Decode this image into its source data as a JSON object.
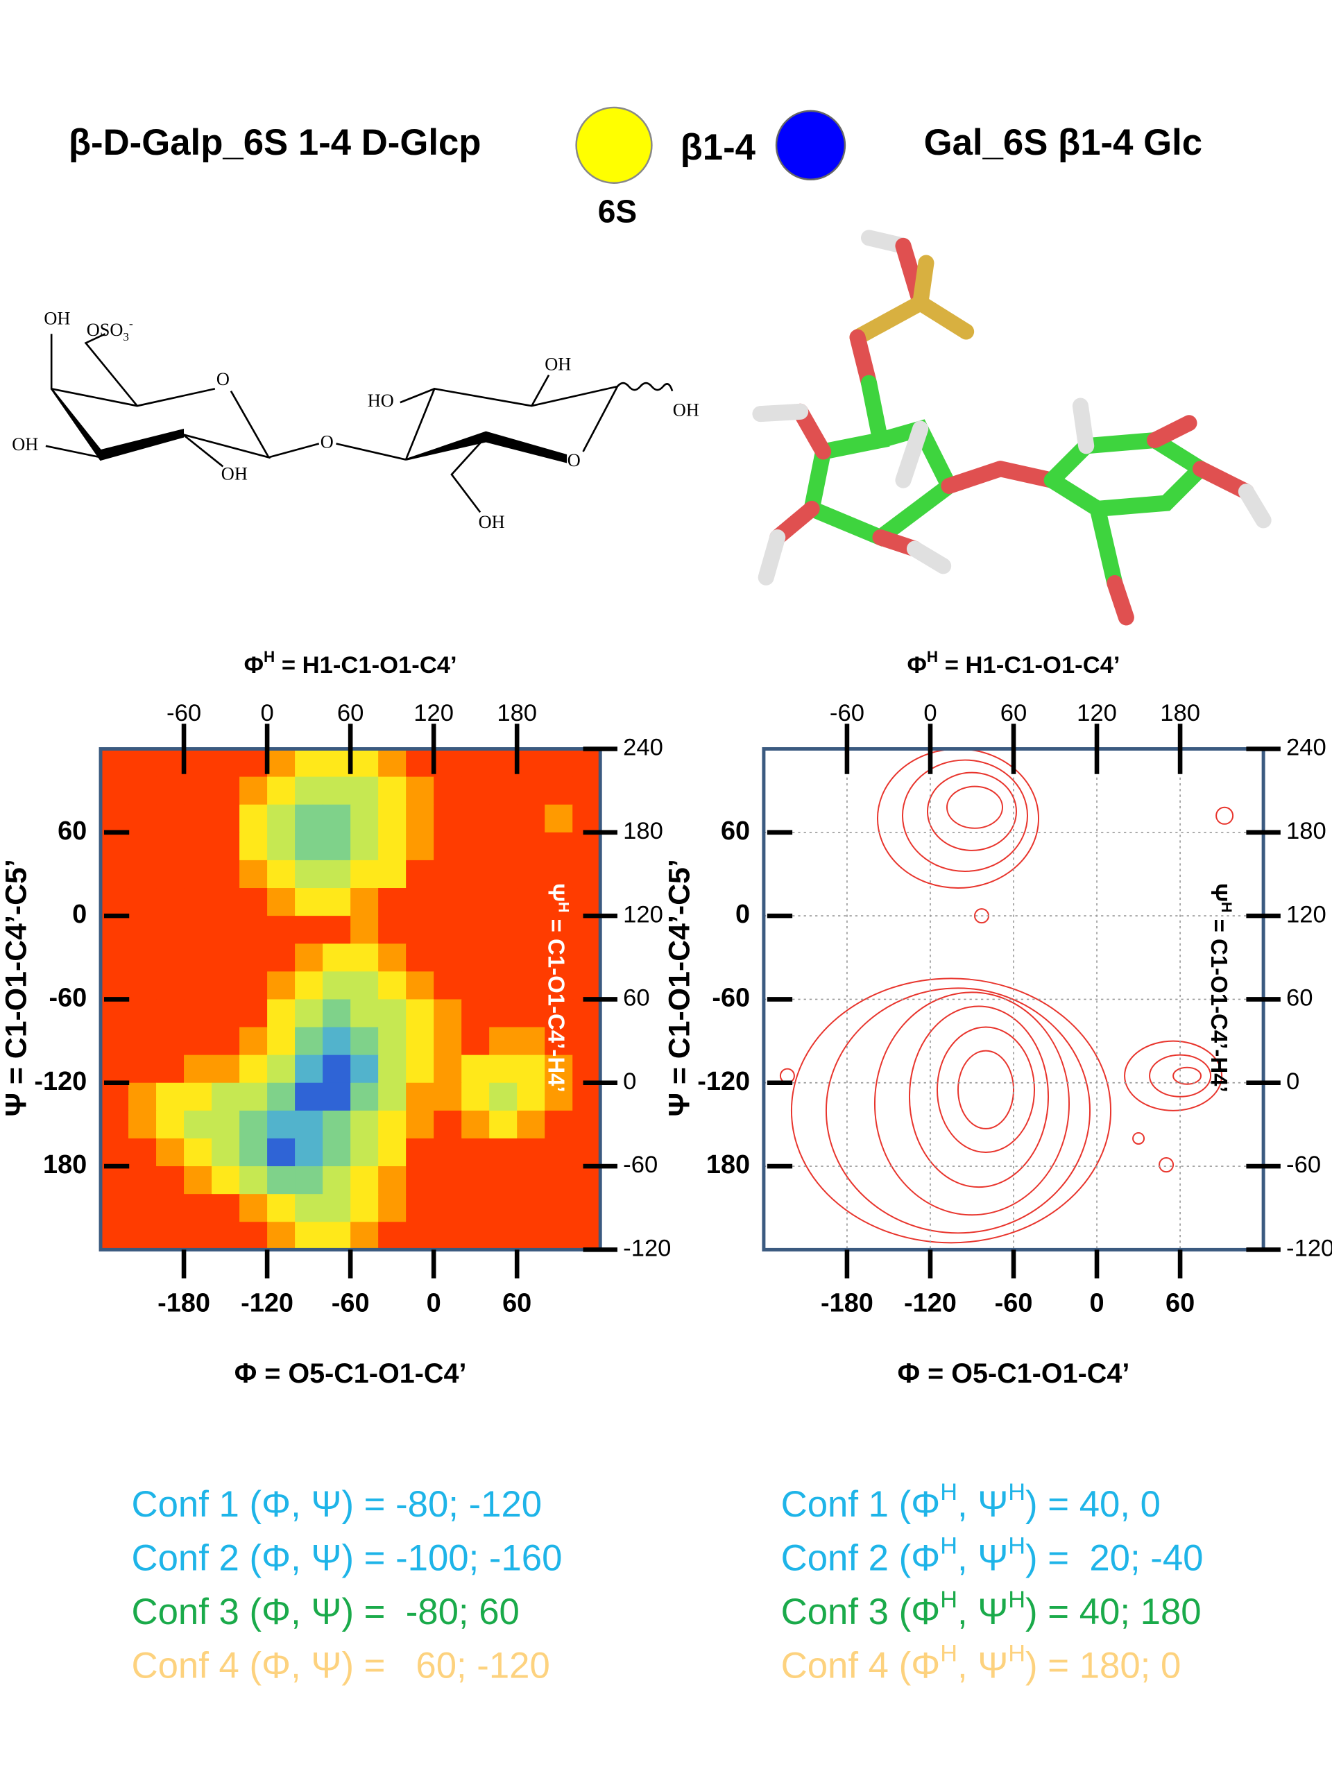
{
  "header": {
    "title_left": "β-D-Galp_6S 1-4 D-Glcp",
    "linkage": "β1-4",
    "sulfate": "6S",
    "title_right": "Gal_6S β1-4 Glc"
  },
  "structure": {
    "labels": [
      {
        "text": [
          "OH"
        ]
      },
      {
        "text": [
          "OSO",
          "3",
          "-"
        ]
      },
      {
        "text": [
          "O"
        ]
      },
      {
        "text": [
          "OH"
        ]
      },
      {
        "text": [
          "OH"
        ]
      },
      {
        "text": [
          "O"
        ]
      },
      {
        "text": [
          "HO"
        ]
      },
      {
        "text": [
          "OH"
        ]
      },
      {
        "text": [
          "OH"
        ]
      },
      {
        "text": [
          "O"
        ]
      },
      {
        "text": [
          "OH"
        ]
      }
    ]
  },
  "chart_data": [
    {
      "type": "heatmap",
      "xlabel": "Φ = O5-C1-O1-C4’",
      "x2label": [
        "Φ",
        "H",
        " = H1-C1-O1-C4’"
      ],
      "ylabel": "Ψ = C1-O1-C4’-C5’",
      "y2label": [
        "Ψ",
        "H",
        " = C1-O1-C4’-H4’"
      ],
      "y2label_color": "#ffffff",
      "xlim": [
        -240,
        120
      ],
      "xticks": [
        -180,
        -120,
        -60,
        0,
        60
      ],
      "x2lim": [
        -120,
        240
      ],
      "x2ticks": [
        -60,
        0,
        60,
        120,
        180
      ],
      "ylim": [
        -240,
        120
      ],
      "yticks": [
        60,
        0,
        -60,
        -120,
        {
          "value": -180,
          "label": "180"
        }
      ],
      "y2lim": [
        -120,
        240
      ],
      "y2ticks": [
        240,
        180,
        120,
        60,
        0,
        -60,
        -120
      ],
      "grid": false,
      "colormap": [
        "#ff3c00",
        "#ff9a00",
        "#ffe81a",
        "#c6e852",
        "#7fd28a",
        "#52b3cc",
        "#2f64d6"
      ],
      "z": [
        [
          0,
          0,
          0,
          0,
          0,
          0,
          1,
          2,
          2,
          2,
          1,
          0,
          0,
          0,
          0,
          0,
          0,
          0
        ],
        [
          0,
          0,
          0,
          0,
          0,
          1,
          2,
          3,
          3,
          3,
          2,
          1,
          0,
          0,
          0,
          0,
          0,
          0
        ],
        [
          0,
          0,
          0,
          0,
          0,
          2,
          3,
          4,
          4,
          3,
          2,
          1,
          0,
          0,
          0,
          0,
          1,
          0
        ],
        [
          0,
          0,
          0,
          0,
          0,
          2,
          3,
          4,
          4,
          3,
          2,
          1,
          0,
          0,
          0,
          0,
          0,
          0
        ],
        [
          0,
          0,
          0,
          0,
          0,
          1,
          2,
          3,
          3,
          2,
          2,
          0,
          0,
          0,
          0,
          0,
          0,
          0
        ],
        [
          0,
          0,
          0,
          0,
          0,
          0,
          1,
          2,
          2,
          1,
          0,
          0,
          0,
          0,
          0,
          0,
          0,
          0
        ],
        [
          0,
          0,
          0,
          0,
          0,
          0,
          0,
          0,
          0,
          1,
          0,
          0,
          0,
          0,
          0,
          0,
          0,
          0
        ],
        [
          0,
          0,
          0,
          0,
          0,
          0,
          0,
          1,
          2,
          2,
          1,
          0,
          0,
          0,
          0,
          0,
          0,
          0
        ],
        [
          0,
          0,
          0,
          0,
          0,
          0,
          1,
          2,
          3,
          3,
          2,
          1,
          0,
          0,
          0,
          0,
          0,
          0
        ],
        [
          0,
          0,
          0,
          0,
          0,
          0,
          2,
          3,
          4,
          3,
          3,
          2,
          1,
          0,
          0,
          0,
          0,
          0
        ],
        [
          0,
          0,
          0,
          0,
          0,
          1,
          2,
          4,
          5,
          4,
          3,
          2,
          1,
          0,
          1,
          1,
          0,
          0
        ],
        [
          0,
          0,
          0,
          1,
          1,
          2,
          3,
          5,
          6,
          5,
          3,
          2,
          1,
          2,
          2,
          2,
          1,
          0
        ],
        [
          0,
          1,
          2,
          2,
          3,
          3,
          4,
          6,
          6,
          4,
          3,
          1,
          1,
          2,
          3,
          2,
          1,
          0
        ],
        [
          0,
          1,
          2,
          3,
          3,
          4,
          5,
          5,
          4,
          3,
          2,
          1,
          0,
          1,
          2,
          1,
          0,
          0
        ],
        [
          0,
          0,
          1,
          2,
          3,
          4,
          6,
          5,
          4,
          3,
          2,
          0,
          0,
          0,
          0,
          0,
          0,
          0
        ],
        [
          0,
          0,
          0,
          1,
          2,
          3,
          4,
          4,
          3,
          2,
          1,
          0,
          0,
          0,
          0,
          0,
          0,
          0
        ],
        [
          0,
          0,
          0,
          0,
          0,
          1,
          2,
          3,
          3,
          2,
          1,
          0,
          0,
          0,
          0,
          0,
          0,
          0
        ],
        [
          0,
          0,
          0,
          0,
          0,
          0,
          1,
          2,
          2,
          1,
          0,
          0,
          0,
          0,
          0,
          0,
          0,
          0
        ]
      ]
    },
    {
      "type": "contour",
      "xlabel": "Φ = O5-C1-O1-C4’",
      "x2label": [
        "Φ",
        "H",
        " = H1-C1-O1-C4’"
      ],
      "ylabel": "Ψ = C1-O1-C4’-C5’",
      "y2label": [
        "Ψ",
        "H",
        " = C1-O1-C4’-H4’"
      ],
      "y2label_color": "#000000",
      "xlim": [
        -240,
        120
      ],
      "xticks": [
        -180,
        -120,
        -60,
        0,
        60
      ],
      "x2lim": [
        -120,
        240
      ],
      "x2ticks": [
        -60,
        0,
        60,
        120,
        180
      ],
      "ylim": [
        -240,
        120
      ],
      "yticks": [
        60,
        0,
        -60,
        -120,
        {
          "value": -180,
          "label": "180"
        }
      ],
      "y2lim": [
        -120,
        240
      ],
      "y2ticks": [
        240,
        180,
        120,
        60,
        0,
        -60,
        -120
      ],
      "grid": true,
      "color": "#e8342c",
      "contours": [
        {
          "x": -100,
          "y": 70,
          "rx": 58,
          "ry": 50
        },
        {
          "x": -95,
          "y": 72,
          "rx": 45,
          "ry": 40
        },
        {
          "x": -90,
          "y": 75,
          "rx": 32,
          "ry": 28
        },
        {
          "x": -88,
          "y": 78,
          "rx": 20,
          "ry": 15
        },
        {
          "x": -105,
          "y": -140,
          "rx": 115,
          "ry": 95
        },
        {
          "x": -100,
          "y": -140,
          "rx": 95,
          "ry": 88
        },
        {
          "x": -90,
          "y": -135,
          "rx": 70,
          "ry": 80
        },
        {
          "x": -85,
          "y": -130,
          "rx": 50,
          "ry": 65
        },
        {
          "x": -80,
          "y": -125,
          "rx": 35,
          "ry": 45
        },
        {
          "x": -80,
          "y": -125,
          "rx": 20,
          "ry": 28
        },
        {
          "x": 55,
          "y": -115,
          "rx": 35,
          "ry": 25
        },
        {
          "x": 60,
          "y": -115,
          "rx": 22,
          "ry": 15
        },
        {
          "x": 65,
          "y": -115,
          "rx": 10,
          "ry": 6
        },
        {
          "x": 92,
          "y": 72,
          "rx": 6,
          "ry": 6
        },
        {
          "x": -223,
          "y": -115,
          "rx": 5,
          "ry": 5
        },
        {
          "x": -83,
          "y": 0,
          "rx": 5,
          "ry": 5
        },
        {
          "x": 30,
          "y": -160,
          "rx": 4,
          "ry": 4
        },
        {
          "x": 50,
          "y": -179,
          "rx": 5,
          "ry": 5
        }
      ]
    }
  ],
  "conformations": {
    "left": [
      {
        "text": "Conf 1 (Φ, Ψ) = -80; -120",
        "color": "#1eb4e8"
      },
      {
        "text": "Conf 2 (Φ, Ψ) = -100; -160",
        "color": "#1eb4e8"
      },
      {
        "text": "Conf 3 (Φ, Ψ) =  -80; 60",
        "color": "#1aaa4a"
      },
      {
        "text": "Conf 4 (Φ, Ψ) =   60; -120",
        "color": "#fdd27e"
      }
    ],
    "right": [
      {
        "parts": [
          "Conf 1 (Φ",
          "H",
          ", Ψ",
          "H",
          ") = 40, 0"
        ],
        "color": "#1eb4e8"
      },
      {
        "parts": [
          "Conf 2 (Φ",
          "H",
          ", Ψ",
          "H",
          ") =  20; -40"
        ],
        "color": "#1eb4e8"
      },
      {
        "parts": [
          "Conf 3 (Φ",
          "H",
          ", Ψ",
          "H",
          ") = 40; 180"
        ],
        "color": "#1aaa4a"
      },
      {
        "parts": [
          "Conf 4 (Φ",
          "H",
          ", Ψ",
          "H",
          ") = 180; 0"
        ],
        "color": "#fdd27e"
      }
    ]
  }
}
